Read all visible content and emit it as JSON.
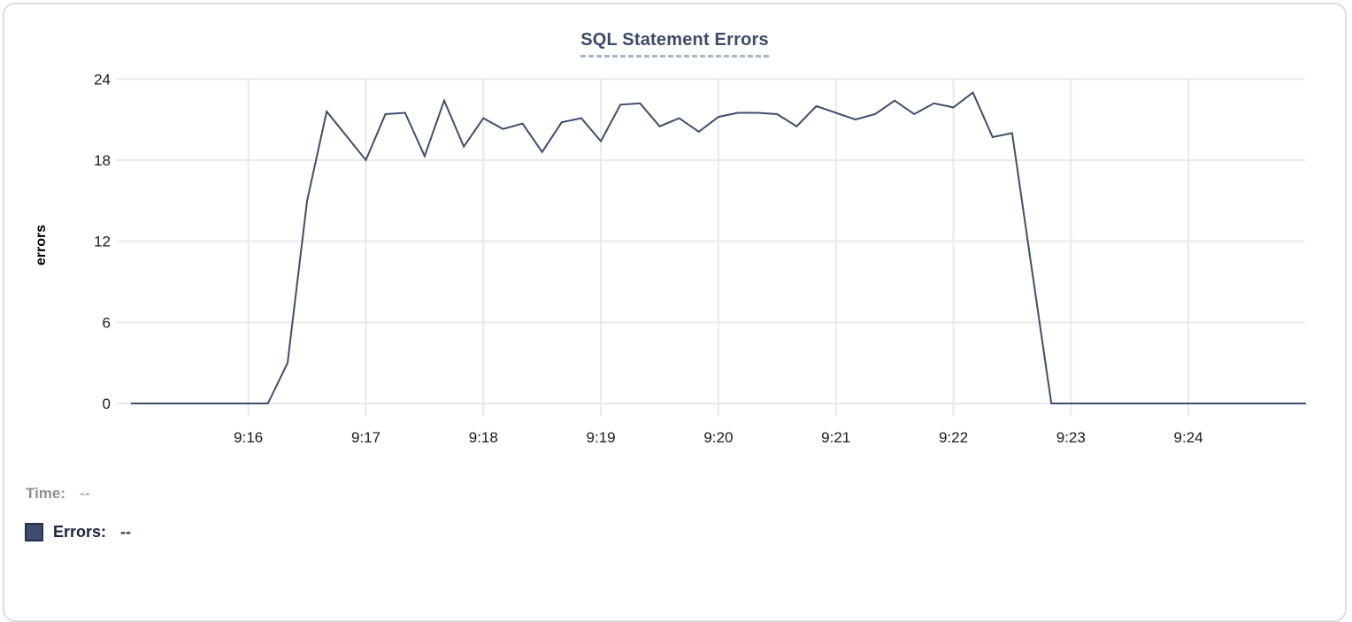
{
  "header": {
    "title": "SQL Statement Errors"
  },
  "readout": {
    "time_label": "Time:",
    "time_value": "--",
    "errors_label": "Errors:",
    "errors_value": "--"
  },
  "colors": {
    "line": "#3f4e6e",
    "title": "#3b4a6b",
    "swatch": "#3f4e6e",
    "swatch_border": "#26304d",
    "grid": "#e9e9e9",
    "tick_text": "#1a1a1a"
  },
  "chart_data": {
    "type": "line",
    "title": "SQL Statement Errors",
    "xlabel": "",
    "ylabel": "errors",
    "ylim": [
      0,
      24
    ],
    "y_ticks": [
      0,
      6,
      12,
      18,
      24
    ],
    "x_tick_labels": [
      "9:16",
      "9:17",
      "9:18",
      "9:19",
      "9:20",
      "9:21",
      "9:22",
      "9:23",
      "9:24"
    ],
    "x_range": [
      "9:15:00",
      "9:25:00"
    ],
    "interval_seconds": 10,
    "grid": true,
    "legend_position": "bottom-left",
    "series": [
      {
        "name": "Errors",
        "color": "#3f4e6e",
        "x_times": [
          "9:15:00",
          "9:15:10",
          "9:15:20",
          "9:15:30",
          "9:15:40",
          "9:15:50",
          "9:16:00",
          "9:16:10",
          "9:16:20",
          "9:16:30",
          "9:16:40",
          "9:16:50",
          "9:17:00",
          "9:17:10",
          "9:17:20",
          "9:17:30",
          "9:17:40",
          "9:17:50",
          "9:18:00",
          "9:18:10",
          "9:18:20",
          "9:18:30",
          "9:18:40",
          "9:18:50",
          "9:19:00",
          "9:19:10",
          "9:19:20",
          "9:19:30",
          "9:19:40",
          "9:19:50",
          "9:20:00",
          "9:20:10",
          "9:20:20",
          "9:20:30",
          "9:20:40",
          "9:20:50",
          "9:21:00",
          "9:21:10",
          "9:21:20",
          "9:21:30",
          "9:21:40",
          "9:21:50",
          "9:22:00",
          "9:22:10",
          "9:22:20",
          "9:22:30",
          "9:22:40",
          "9:22:50",
          "9:23:00",
          "9:23:10",
          "9:23:20",
          "9:23:30",
          "9:23:40",
          "9:23:50",
          "9:24:00",
          "9:24:10",
          "9:24:20",
          "9:24:30",
          "9:24:40",
          "9:24:50",
          "9:25:00"
        ],
        "values": [
          0,
          0,
          0,
          0,
          0,
          0,
          0,
          0,
          3,
          15,
          21.6,
          19.8,
          18,
          21.4,
          21.5,
          18.3,
          22.4,
          19,
          21.1,
          20.3,
          20.7,
          18.6,
          20.8,
          21.1,
          19.4,
          22.1,
          22.2,
          20.5,
          21.1,
          20.1,
          21.2,
          21.5,
          21.5,
          21.4,
          20.5,
          22,
          21.5,
          21,
          21.4,
          22.4,
          21.4,
          22.2,
          21.9,
          23,
          19.7,
          20,
          10,
          0,
          0,
          0,
          0,
          0,
          0,
          0,
          0,
          0,
          0,
          0,
          0,
          0,
          0
        ]
      }
    ]
  }
}
